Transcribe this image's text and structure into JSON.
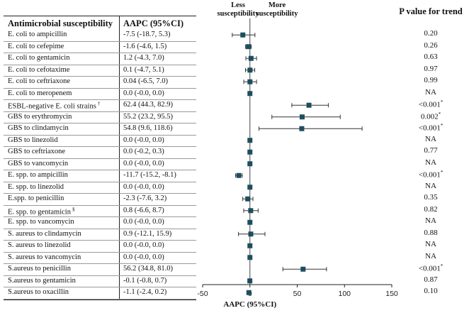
{
  "table": {
    "col1_header": "Antimicrobial susceptibility",
    "col2_header": "AAPC (95%CI)",
    "pvalue_header": "P value for trend"
  },
  "plot": {
    "less_label": "Less susceptibility",
    "more_label": "More susceptibility"
  },
  "chart_data": {
    "type": "forest",
    "xlabel": "AAPC (95%CI)",
    "xlim": [
      -50,
      150
    ],
    "xticks": [
      -50,
      0,
      50,
      100,
      150
    ],
    "reference_line": 0,
    "marker_color": "#1d4e5e",
    "rows": [
      {
        "label": "E. coli to ampicillin",
        "text": "-7.5 (-18.7, 5.3)",
        "est": -7.5,
        "lo": -18.7,
        "hi": 5.3,
        "p": "0.20",
        "star": ""
      },
      {
        "label": "E. coli to cefepime",
        "text": "-1.6 (-4.6, 1.5)",
        "est": -1.6,
        "lo": -4.6,
        "hi": 1.5,
        "p": "0.26",
        "star": ""
      },
      {
        "label": "E. coli to gentamicin",
        "text": "1.2 (-4.3, 7.0)",
        "est": 1.2,
        "lo": -4.3,
        "hi": 7.0,
        "p": "0.63",
        "star": ""
      },
      {
        "label": "E. coli to cefotaxime",
        "text": "0.1 (-4.7, 5.1)",
        "est": 0.1,
        "lo": -4.7,
        "hi": 5.1,
        "p": "0.97",
        "star": ""
      },
      {
        "label": "E. coli to ceftriaxone",
        "text": "0.04 (-6.5, 7.0)",
        "est": 0.04,
        "lo": -6.5,
        "hi": 7.0,
        "p": "0.99",
        "star": ""
      },
      {
        "label": "E. coli to meropenem",
        "text": "0.0 (-0.0, 0.0)",
        "est": 0.0,
        "lo": 0.0,
        "hi": 0.0,
        "p": "NA",
        "star": ""
      },
      {
        "label": "ESBL-negative E. coli strains",
        "sup": "†",
        "text": "62.4 (44.3, 82.9)",
        "est": 62.4,
        "lo": 44.3,
        "hi": 82.9,
        "p": "<0.001",
        "star": "*"
      },
      {
        "label": "GBS to erythromycin",
        "text": "55.2 (23.2, 95.5)",
        "est": 55.2,
        "lo": 23.2,
        "hi": 95.5,
        "p": "0.002",
        "star": "*"
      },
      {
        "label": "GBS to clindamycin",
        "text": "54.8 (9.6, 118.6)",
        "est": 54.8,
        "lo": 9.6,
        "hi": 118.6,
        "p": "<0.001",
        "star": "*"
      },
      {
        "label": "GBS to linezolid",
        "text": "0.0 (-0.0, 0.0)",
        "est": 0.0,
        "lo": 0.0,
        "hi": 0.0,
        "p": "NA",
        "star": ""
      },
      {
        "label": "GBS to ceftriaxone",
        "text": "0.0 (-0.2, 0.3)",
        "est": 0.0,
        "lo": -0.2,
        "hi": 0.3,
        "p": "0.77",
        "star": ""
      },
      {
        "label": "GBS to vancomycin",
        "text": "0.0 (-0.0, 0.0)",
        "est": 0.0,
        "lo": 0.0,
        "hi": 0.0,
        "p": "NA",
        "star": ""
      },
      {
        "label": "E. spp. to ampicillin",
        "text": "-11.7 (-15.2, -8.1)",
        "est": -11.7,
        "lo": -15.2,
        "hi": -8.1,
        "p": "<0.001",
        "star": "*"
      },
      {
        "label": "E. spp. to linezolid",
        "text": "0.0 (-0.0, 0.0)",
        "est": 0.0,
        "lo": 0.0,
        "hi": 0.0,
        "p": "NA",
        "star": ""
      },
      {
        "label": "E.spp. to penicillin",
        "text": "-2.3 (-7.6, 3.2)",
        "est": -2.3,
        "lo": -7.6,
        "hi": 3.2,
        "p": "0.35",
        "star": ""
      },
      {
        "label": "E. spp. to gentamicin",
        "sup": "§",
        "text": "0.8 (-6.6, 8.7)",
        "est": 0.8,
        "lo": -6.6,
        "hi": 8.7,
        "p": "0.82",
        "star": ""
      },
      {
        "label": "E. spp. to vancomycin",
        "text": "0.0 (-0.0, 0.0)",
        "est": 0.0,
        "lo": 0.0,
        "hi": 0.0,
        "p": "NA",
        "star": ""
      },
      {
        "label": "S. aureus to clindamycin",
        "text": "0.9 (-12.1, 15.9)",
        "est": 0.9,
        "lo": -12.1,
        "hi": 15.9,
        "p": "0.88",
        "star": ""
      },
      {
        "label": "S. aureus to linezolid",
        "text": "0.0 (-0.0, 0.0)",
        "est": 0.0,
        "lo": 0.0,
        "hi": 0.0,
        "p": "NA",
        "star": ""
      },
      {
        "label": "S. aureus to vancomycin",
        "text": "0.0 (-0.0, 0.0)",
        "est": 0.0,
        "lo": 0.0,
        "hi": 0.0,
        "p": "NA",
        "star": ""
      },
      {
        "label": "S.aureus to penicillin",
        "text": "56.2 (34.8, 81.0)",
        "est": 56.2,
        "lo": 34.8,
        "hi": 81.0,
        "p": "<0.001",
        "star": "*"
      },
      {
        "label": "S.aureus to gentamicin",
        "text": "-0.1 (-0.8, 0.7)",
        "est": -0.1,
        "lo": -0.8,
        "hi": 0.7,
        "p": "0.87",
        "star": ""
      },
      {
        "label": "S.aureus to oxacillin",
        "text": "-1.1 (-2.4, 0.2)",
        "est": -1.1,
        "lo": -2.4,
        "hi": 0.2,
        "p": "0.10",
        "star": ""
      }
    ]
  }
}
